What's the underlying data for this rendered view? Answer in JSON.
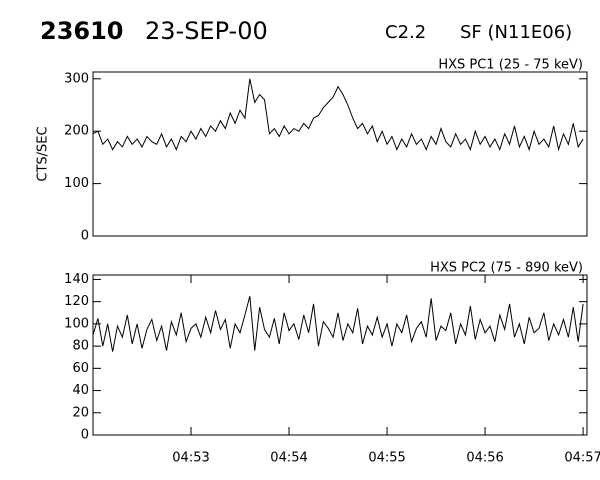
{
  "header": {
    "id": "23610",
    "date": "23-SEP-00",
    "class": "C2.2",
    "event": "SF (N11E06)"
  },
  "chart_data": [
    {
      "type": "line",
      "title": "HXS PC1 (25 - 75 keV)",
      "y_label": "CTS/SEC",
      "x": [
        292,
        292.05,
        292.1,
        292.15,
        292.2,
        292.25,
        292.3,
        292.35,
        292.4,
        292.45,
        292.5,
        292.55,
        292.6,
        292.65,
        292.7,
        292.75,
        292.8,
        292.85,
        292.9,
        292.95,
        293,
        293.05,
        293.1,
        293.15,
        293.2,
        293.25,
        293.3,
        293.35,
        293.4,
        293.45,
        293.5,
        293.55,
        293.6,
        293.65,
        293.7,
        293.75,
        293.8,
        293.85,
        293.9,
        293.95,
        294,
        294.05,
        294.1,
        294.15,
        294.2,
        294.25,
        294.3,
        294.35,
        294.4,
        294.45,
        294.5,
        294.55,
        294.6,
        294.65,
        294.7,
        294.75,
        294.8,
        294.85,
        294.9,
        294.95,
        295,
        295.05,
        295.1,
        295.15,
        295.2,
        295.25,
        295.3,
        295.35,
        295.4,
        295.45,
        295.5,
        295.55,
        295.6,
        295.65,
        295.7,
        295.75,
        295.8,
        295.85,
        295.9,
        295.95,
        296,
        296.05,
        296.1,
        296.15,
        296.2,
        296.25,
        296.3,
        296.35,
        296.4,
        296.45,
        296.5,
        296.55,
        296.6,
        296.65,
        296.7,
        296.75,
        296.8,
        296.85,
        296.9,
        296.95,
        297
      ],
      "series": [
        {
          "color": "#000000",
          "values": [
            195,
            200,
            175,
            185,
            165,
            180,
            170,
            190,
            175,
            185,
            170,
            190,
            180,
            175,
            195,
            170,
            185,
            165,
            190,
            180,
            200,
            185,
            205,
            190,
            210,
            200,
            220,
            205,
            235,
            215,
            240,
            225,
            300,
            255,
            270,
            260,
            195,
            205,
            190,
            210,
            195,
            205,
            200,
            215,
            205,
            225,
            230,
            245,
            255,
            265,
            285,
            270,
            250,
            225,
            205,
            215,
            195,
            210,
            180,
            200,
            175,
            190,
            165,
            185,
            170,
            195,
            175,
            185,
            165,
            190,
            175,
            205,
            180,
            170,
            195,
            175,
            185,
            165,
            200,
            175,
            190,
            170,
            185,
            165,
            195,
            175,
            210,
            170,
            190,
            165,
            200,
            175,
            185,
            170,
            210,
            165,
            195,
            175,
            215,
            170,
            185
          ]
        }
      ],
      "xlim": [
        292,
        297.04
      ],
      "ylim": [
        0,
        313
      ],
      "yticks": [
        0,
        100,
        200,
        300
      ]
    },
    {
      "type": "line",
      "title": "HXS PC2 (75 - 890 keV)",
      "x": [
        292,
        292.05,
        292.1,
        292.15,
        292.2,
        292.25,
        292.3,
        292.35,
        292.4,
        292.45,
        292.5,
        292.55,
        292.6,
        292.65,
        292.7,
        292.75,
        292.8,
        292.85,
        292.9,
        292.95,
        293,
        293.05,
        293.1,
        293.15,
        293.2,
        293.25,
        293.3,
        293.35,
        293.4,
        293.45,
        293.5,
        293.55,
        293.6,
        293.65,
        293.7,
        293.75,
        293.8,
        293.85,
        293.9,
        293.95,
        294,
        294.05,
        294.1,
        294.15,
        294.2,
        294.25,
        294.3,
        294.35,
        294.4,
        294.45,
        294.5,
        294.55,
        294.6,
        294.65,
        294.7,
        294.75,
        294.8,
        294.85,
        294.9,
        294.95,
        295,
        295.05,
        295.1,
        295.15,
        295.2,
        295.25,
        295.3,
        295.35,
        295.4,
        295.45,
        295.5,
        295.55,
        295.6,
        295.65,
        295.7,
        295.75,
        295.8,
        295.85,
        295.9,
        295.95,
        296,
        296.05,
        296.1,
        296.15,
        296.2,
        296.25,
        296.3,
        296.35,
        296.4,
        296.45,
        296.5,
        296.55,
        296.6,
        296.65,
        296.7,
        296.75,
        296.8,
        296.85,
        296.9,
        296.95,
        297
      ],
      "series": [
        {
          "color": "#000000",
          "values": [
            90,
            105,
            80,
            100,
            75,
            98,
            88,
            108,
            82,
            100,
            78,
            95,
            104,
            85,
            98,
            76,
            102,
            90,
            110,
            84,
            96,
            100,
            88,
            106,
            92,
            112,
            95,
            104,
            78,
            100,
            92,
            108,
            125,
            76,
            115,
            95,
            88,
            105,
            82,
            110,
            94,
            100,
            86,
            108,
            92,
            118,
            80,
            102,
            96,
            88,
            110,
            85,
            100,
            92,
            114,
            82,
            98,
            90,
            106,
            88,
            100,
            80,
            100,
            92,
            108,
            84,
            96,
            102,
            88,
            123,
            85,
            98,
            94,
            110,
            82,
            100,
            90,
            116,
            86,
            104,
            92,
            98,
            84,
            108,
            95,
            118,
            88,
            100,
            82,
            106,
            92,
            96,
            110,
            85,
            100,
            90,
            104,
            88,
            115,
            84,
            118
          ]
        }
      ],
      "xlim": [
        292,
        297.04
      ],
      "ylim": [
        0,
        144
      ],
      "yticks": [
        0,
        20,
        40,
        60,
        80,
        100,
        120,
        140
      ],
      "xticks": [
        {
          "value": 293,
          "label": "04:53"
        },
        {
          "value": 294,
          "label": "04:54"
        },
        {
          "value": 295,
          "label": "04:55"
        },
        {
          "value": 296,
          "label": "04:56"
        },
        {
          "value": 297,
          "label": "04:57"
        }
      ]
    }
  ]
}
